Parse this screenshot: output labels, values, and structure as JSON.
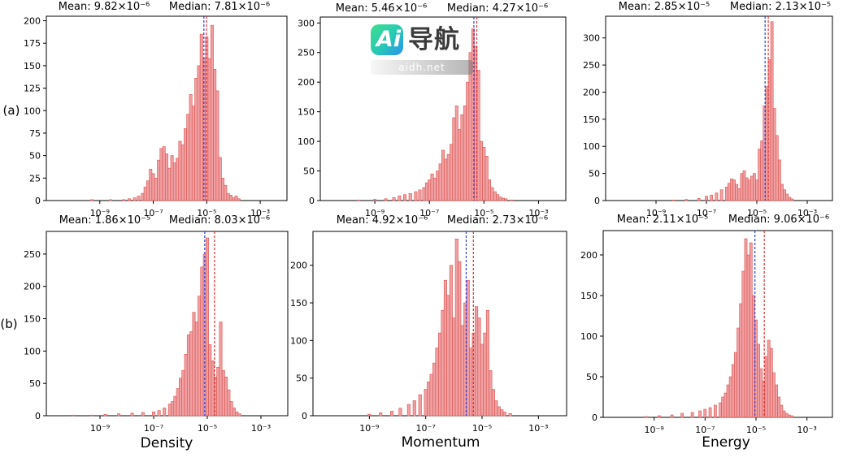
{
  "figure": {
    "row_labels": [
      "(a)",
      "(b)"
    ],
    "column_labels": [
      "Density",
      "Momentum",
      "Energy"
    ],
    "colors": {
      "bar_fill": "#f0a0a2",
      "bar_edge": "#d9534f",
      "mean_line": "#e03030",
      "median_line": "#2a3fdc",
      "axis": "#000000"
    }
  },
  "chart_data": [
    {
      "type": "bar",
      "row": "(a)",
      "column": "Density",
      "mean_label": "Mean: 9.82×10⁻⁶",
      "median_label": "Median: 7.81×10⁻⁶",
      "mean": 9.82e-06,
      "median": 7.81e-06,
      "xscale": "log",
      "xlim": [
        1e-11,
        0.01
      ],
      "xticks": [
        "10⁻⁹",
        "10⁻⁷",
        "10⁻⁵",
        "10⁻³"
      ],
      "ylim": [
        0,
        205
      ],
      "yticks": [
        0,
        25,
        50,
        75,
        100,
        125,
        150,
        175,
        200
      ],
      "bins_log10": [
        -9.3,
        -8.6,
        -8.1,
        -7.9,
        -7.7,
        -7.55,
        -7.4,
        -7.3,
        -7.2,
        -7.1,
        -7.0,
        -6.9,
        -6.8,
        -6.7,
        -6.6,
        -6.5,
        -6.4,
        -6.3,
        -6.2,
        -6.1,
        -6.0,
        -5.9,
        -5.8,
        -5.7,
        -5.6,
        -5.5,
        -5.4,
        -5.3,
        -5.2,
        -5.1,
        -5.0,
        -4.9,
        -4.8,
        -4.7,
        -4.6,
        -4.5,
        -4.4,
        -4.3,
        -4.2,
        -4.1,
        -4.0,
        -3.9,
        -3.8
      ],
      "counts": [
        1,
        1,
        1,
        2,
        3,
        5,
        8,
        15,
        22,
        35,
        30,
        25,
        45,
        58,
        60,
        52,
        36,
        50,
        42,
        47,
        66,
        62,
        80,
        96,
        118,
        105,
        136,
        150,
        185,
        158,
        182,
        158,
        195,
        146,
        122,
        48,
        25,
        17,
        8,
        6,
        3,
        5,
        2
      ]
    },
    {
      "type": "bar",
      "row": "(a)",
      "column": "Momentum",
      "mean_label": "Mean: 5.46×10⁻⁶",
      "median_label": "Median: 4.27×10⁻⁶",
      "mean": 5.46e-06,
      "median": 4.27e-06,
      "xscale": "log",
      "xlim": [
        1e-11,
        0.01
      ],
      "xticks": [
        "10⁻⁹",
        "10⁻⁷",
        "10⁻⁵",
        "10⁻³"
      ],
      "ylim": [
        0,
        310
      ],
      "yticks": [
        0,
        50,
        100,
        150,
        200,
        250,
        300
      ],
      "bins_log10": [
        -9.6,
        -9.0,
        -8.6,
        -8.3,
        -8.1,
        -7.9,
        -7.7,
        -7.5,
        -7.35,
        -7.2,
        -7.1,
        -7.0,
        -6.9,
        -6.8,
        -6.7,
        -6.6,
        -6.5,
        -6.4,
        -6.3,
        -6.2,
        -6.1,
        -6.0,
        -5.9,
        -5.8,
        -5.7,
        -5.6,
        -5.5,
        -5.4,
        -5.3,
        -5.2,
        -5.1,
        -5.0,
        -4.9,
        -4.8,
        -4.7,
        -4.6,
        -4.5,
        -4.4,
        -4.3,
        -4.2,
        -4.0
      ],
      "counts": [
        1,
        2,
        3,
        5,
        8,
        10,
        12,
        15,
        18,
        22,
        30,
        35,
        45,
        38,
        50,
        62,
        85,
        70,
        78,
        95,
        140,
        160,
        120,
        145,
        160,
        200,
        250,
        290,
        260,
        220,
        100,
        90,
        75,
        35,
        22,
        15,
        10,
        6,
        4,
        3,
        1
      ]
    },
    {
      "type": "bar",
      "row": "(a)",
      "column": "Energy",
      "mean_label": "Mean: 2.85×10⁻⁵",
      "median_label": "Median: 2.13×10⁻⁵",
      "mean": 2.85e-05,
      "median": 2.13e-05,
      "xscale": "log",
      "xlim": [
        1e-11,
        0.01
      ],
      "xticks": [
        "10⁻⁹",
        "10⁻⁷",
        "10⁻⁵",
        "10⁻³"
      ],
      "ylim": [
        0,
        340
      ],
      "yticks": [
        0,
        50,
        100,
        150,
        200,
        250,
        300
      ],
      "bins_log10": [
        -8.3,
        -7.8,
        -7.3,
        -7.0,
        -6.8,
        -6.6,
        -6.4,
        -6.2,
        -6.1,
        -6.0,
        -5.9,
        -5.8,
        -5.7,
        -5.6,
        -5.5,
        -5.4,
        -5.3,
        -5.2,
        -5.1,
        -5.0,
        -4.9,
        -4.8,
        -4.7,
        -4.6,
        -4.5,
        -4.4,
        -4.3,
        -4.2,
        -4.1,
        -4.0,
        -3.9,
        -3.8,
        -3.7,
        -3.6
      ],
      "counts": [
        1,
        2,
        4,
        8,
        10,
        14,
        20,
        25,
        32,
        40,
        38,
        30,
        22,
        50,
        55,
        42,
        38,
        45,
        50,
        38,
        95,
        110,
        175,
        210,
        260,
        330,
        170,
        120,
        75,
        30,
        20,
        12,
        6,
        3
      ]
    },
    {
      "type": "bar",
      "row": "(b)",
      "column": "Density",
      "mean_label": "Mean: 1.86×10⁻⁵",
      "median_label": "Median: 8.03×10⁻⁶",
      "mean": 1.86e-05,
      "median": 8.03e-06,
      "xscale": "log",
      "xlim": [
        1e-11,
        0.01
      ],
      "xticks": [
        "10⁻⁹",
        "10⁻⁷",
        "10⁻⁵",
        "10⁻³"
      ],
      "ylim": [
        0,
        285
      ],
      "yticks": [
        0,
        50,
        100,
        150,
        200,
        250
      ],
      "bins_log10": [
        -10.0,
        -9.3,
        -8.8,
        -8.3,
        -7.8,
        -7.4,
        -7.0,
        -6.8,
        -6.6,
        -6.4,
        -6.3,
        -6.2,
        -6.1,
        -6.0,
        -5.9,
        -5.8,
        -5.7,
        -5.6,
        -5.5,
        -5.4,
        -5.3,
        -5.2,
        -5.1,
        -5.0,
        -4.9,
        -4.8,
        -4.7,
        -4.6,
        -4.5,
        -4.4,
        -4.3,
        -4.2,
        -4.1,
        -4.0,
        -3.9,
        -3.8
      ],
      "counts": [
        1,
        1,
        2,
        3,
        4,
        5,
        6,
        8,
        12,
        18,
        22,
        30,
        42,
        58,
        70,
        95,
        125,
        130,
        160,
        145,
        185,
        230,
        250,
        275,
        110,
        85,
        60,
        75,
        145,
        70,
        60,
        40,
        22,
        12,
        6,
        3
      ]
    },
    {
      "type": "bar",
      "row": "(b)",
      "column": "Momentum",
      "mean_label": "Mean: 4.92×10⁻⁶",
      "median_label": "Median: 2.73×10⁻⁶",
      "mean": 4.92e-06,
      "median": 2.73e-06,
      "xscale": "log",
      "xlim": [
        1e-11,
        0.01
      ],
      "xticks": [
        "10⁻⁹",
        "10⁻⁷",
        "10⁻⁵",
        "10⁻³"
      ],
      "ylim": [
        0,
        245
      ],
      "yticks": [
        0,
        50,
        100,
        150,
        200
      ],
      "bins_log10": [
        -9.0,
        -8.6,
        -8.2,
        -7.9,
        -7.6,
        -7.4,
        -7.2,
        -7.0,
        -6.9,
        -6.8,
        -6.7,
        -6.6,
        -6.5,
        -6.4,
        -6.3,
        -6.2,
        -6.1,
        -6.0,
        -5.9,
        -5.8,
        -5.7,
        -5.6,
        -5.5,
        -5.4,
        -5.3,
        -5.2,
        -5.1,
        -5.0,
        -4.9,
        -4.8,
        -4.7,
        -4.6,
        -4.5,
        -4.4,
        -4.3,
        -4.2,
        -4.0
      ],
      "counts": [
        2,
        4,
        6,
        10,
        15,
        20,
        28,
        35,
        45,
        55,
        70,
        90,
        110,
        140,
        180,
        160,
        200,
        130,
        235,
        205,
        120,
        150,
        180,
        90,
        110,
        145,
        130,
        95,
        110,
        140,
        60,
        35,
        20,
        12,
        8,
        5,
        3
      ]
    },
    {
      "type": "bar",
      "row": "(b)",
      "column": "Energy",
      "mean_label": "Mean: 2.11×10⁻⁵",
      "median_label": "Median: 9.06×10⁻⁶",
      "mean": 2.11e-05,
      "median": 9.06e-06,
      "xscale": "log",
      "xlim": [
        1e-11,
        0.01
      ],
      "xticks": [
        "10⁻⁹",
        "10⁻⁷",
        "10⁻⁵",
        "10⁻³"
      ],
      "ylim": [
        0,
        230
      ],
      "yticks": [
        0,
        50,
        100,
        150,
        200
      ],
      "bins_log10": [
        -9.3,
        -8.8,
        -8.3,
        -7.9,
        -7.5,
        -7.2,
        -7.0,
        -6.8,
        -6.6,
        -6.4,
        -6.3,
        -6.2,
        -6.1,
        -6.0,
        -5.9,
        -5.8,
        -5.7,
        -5.6,
        -5.5,
        -5.4,
        -5.3,
        -5.2,
        -5.1,
        -5.0,
        -4.9,
        -4.8,
        -4.7,
        -4.6,
        -4.5,
        -4.4,
        -4.3,
        -4.2,
        -4.1,
        -4.0,
        -3.9,
        -3.8,
        -3.7,
        -3.6
      ],
      "counts": [
        1,
        2,
        3,
        5,
        6,
        8,
        10,
        12,
        15,
        18,
        25,
        30,
        40,
        50,
        65,
        80,
        110,
        140,
        180,
        220,
        200,
        215,
        150,
        120,
        90,
        60,
        45,
        75,
        95,
        85,
        55,
        40,
        25,
        15,
        8,
        5,
        3,
        2
      ]
    }
  ],
  "watermark": {
    "badge": "Ai",
    "name": "导航",
    "url": "aidh.net"
  }
}
